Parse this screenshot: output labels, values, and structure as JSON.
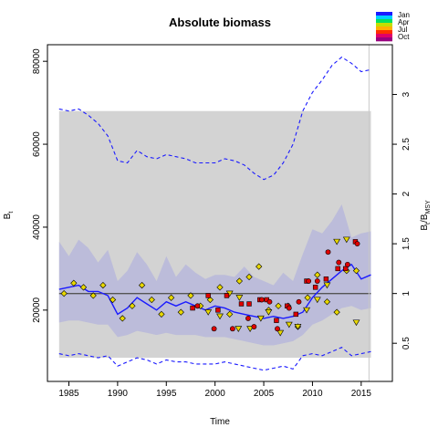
{
  "chart_data": {
    "type": "line",
    "title": "Absolute biomass",
    "xlabel": "Time",
    "ylabel": "B",
    "ylabel_sub": "t",
    "y2label": "B",
    "y2label_sub": "t",
    "y2label_mid": "/B",
    "y2label_sub2": "MSY",
    "xlim": [
      1982.8,
      2018.2
    ],
    "ylim": [
      2800,
      84000
    ],
    "x_ticks": [
      1985,
      1990,
      1995,
      2000,
      2005,
      2010,
      2015
    ],
    "y_ticks": [
      20000,
      40000,
      60000,
      80000
    ],
    "y2_ticks": [
      0.5,
      1,
      1.5,
      2,
      2.5,
      3
    ],
    "bmsy": 24000,
    "reference_line_value": 24000,
    "projection_start_year": 2015.8,
    "grey_band": {
      "x": [
        1984,
        2016
      ],
      "y": [
        8500,
        68000
      ]
    },
    "legend": {
      "labels": [
        "Jan",
        "Apr",
        "Jul",
        "Oct"
      ],
      "colors": [
        "#1a1aff",
        "#00d0ff",
        "#00e060",
        "#c0e000",
        "#ffb000",
        "#ff3000",
        "#e0006a",
        "#9a0080"
      ]
    },
    "series": [
      {
        "name": "B",
        "style": "solid",
        "color": "#1a1aff",
        "x": [
          1984,
          1985,
          1986,
          1987,
          1988,
          1989,
          1990,
          1991,
          1992,
          1993,
          1994,
          1995,
          1996,
          1997,
          1998,
          1999,
          2000,
          2001,
          2002,
          2003,
          2004,
          2005,
          2006,
          2007,
          2008,
          2009,
          2010,
          2011,
          2012,
          2013,
          2014,
          2015,
          2016
        ],
        "y": [
          25000,
          25500,
          26000,
          24500,
          24500,
          23500,
          19000,
          20500,
          23000,
          21500,
          20000,
          22000,
          21000,
          22000,
          21000,
          20000,
          21000,
          20500,
          19500,
          19000,
          18500,
          18000,
          18500,
          18000,
          18500,
          19500,
          23000,
          25500,
          27500,
          29500,
          31000,
          27500,
          28500
        ]
      },
      {
        "name": "upper-CI",
        "style": "dashed",
        "color": "#1a1aff",
        "x": [
          1984,
          1985,
          1986,
          1987,
          1988,
          1989,
          1990,
          1991,
          1992,
          1993,
          1994,
          1995,
          1996,
          1997,
          1998,
          1999,
          2000,
          2001,
          2002,
          2003,
          2004,
          2005,
          2006,
          2007,
          2008,
          2009,
          2010,
          2011,
          2012,
          2013,
          2014,
          2015,
          2016
        ],
        "y": [
          68500,
          68000,
          68500,
          67000,
          65000,
          62000,
          56000,
          55500,
          58500,
          57000,
          56500,
          57500,
          57000,
          56500,
          55500,
          55500,
          55500,
          56500,
          56000,
          55000,
          53000,
          51500,
          52500,
          55500,
          60000,
          68000,
          72500,
          75500,
          79000,
          81000,
          79500,
          77500,
          78000
        ]
      },
      {
        "name": "lower-CI",
        "style": "dashed",
        "color": "#1a1aff",
        "x": [
          1984,
          1985,
          1986,
          1987,
          1988,
          1989,
          1990,
          1991,
          1992,
          1993,
          1994,
          1995,
          1996,
          1997,
          1998,
          1999,
          2000,
          2001,
          2002,
          2003,
          2004,
          2005,
          2006,
          2007,
          2008,
          2009,
          2010,
          2011,
          2012,
          2013,
          2014,
          2015,
          2016
        ],
        "y": [
          9500,
          9000,
          9500,
          9000,
          8500,
          9000,
          6500,
          7500,
          8500,
          8000,
          7000,
          8000,
          7500,
          7500,
          7000,
          7000,
          7000,
          7500,
          7000,
          6500,
          6000,
          5500,
          6000,
          6500,
          5800,
          9000,
          9500,
          9000,
          10000,
          11000,
          9000,
          9500,
          10000
        ]
      },
      {
        "name": "band-upper",
        "style": "band",
        "color": "#b4b4dc",
        "x": [
          1984,
          1985,
          1986,
          1987,
          1988,
          1989,
          1990,
          1991,
          1992,
          1993,
          1994,
          1995,
          1996,
          1997,
          1998,
          1999,
          2000,
          2001,
          2002,
          2003,
          2004,
          2005,
          2006,
          2007,
          2008,
          2009,
          2010,
          2011,
          2012,
          2013,
          2014,
          2015,
          2016
        ],
        "y": [
          36500,
          33000,
          37000,
          35000,
          31500,
          34500,
          27000,
          29500,
          34000,
          31000,
          27000,
          33000,
          28000,
          31000,
          29000,
          27500,
          28500,
          28500,
          28000,
          30500,
          28000,
          27000,
          26000,
          29000,
          27000,
          33500,
          39500,
          38500,
          41500,
          45500,
          37500,
          38500,
          39000
        ]
      },
      {
        "name": "band-lower",
        "style": "band",
        "color": "#b4b4dc",
        "x": [
          1984,
          1985,
          1986,
          1987,
          1988,
          1989,
          1990,
          1991,
          1992,
          1993,
          1994,
          1995,
          1996,
          1997,
          1998,
          1999,
          2000,
          2001,
          2002,
          2003,
          2004,
          2005,
          2006,
          2007,
          2008,
          2009,
          2010,
          2011,
          2012,
          2013,
          2014,
          2015,
          2016
        ],
        "y": [
          17000,
          17500,
          17500,
          17000,
          16500,
          16500,
          13500,
          14000,
          15000,
          14500,
          14000,
          14500,
          14000,
          14000,
          14000,
          13500,
          13500,
          13500,
          13000,
          12500,
          12000,
          11500,
          11500,
          12000,
          12500,
          14000,
          16500,
          17500,
          19000,
          20500,
          21000,
          20000,
          20500
        ]
      }
    ],
    "observations": {
      "triangles": {
        "color": "#e8d800",
        "x": [
          1999.3,
          2000.5,
          2001.5,
          2002.4,
          2002.5,
          2003.6,
          2004.7,
          2005.5,
          2006.7,
          2007.6,
          2008.5,
          2009.4,
          2010.5,
          2011.5,
          2012.5,
          2013.5,
          2014.5
        ],
        "y": [
          19500,
          18500,
          24000,
          15500,
          23000,
          15500,
          18000,
          19500,
          14500,
          16500,
          16000,
          20000,
          22500,
          26000,
          36500,
          37000,
          17000
        ]
      },
      "diamonds": {
        "color": "#e8d800",
        "x": [
          1984.5,
          1985.5,
          1986.5,
          1987.5,
          1988.5,
          1989.5,
          1990.5,
          1991.5,
          1992.5,
          1993.5,
          1994.5,
          1995.5,
          1996.5,
          1997.5,
          1998.5,
          1999.5,
          2000.5,
          2001.5,
          2002.5,
          2003.5,
          2004.5,
          2005.5,
          2006.5,
          2007.5,
          2008.5,
          2009.5,
          2010.5,
          2011.5,
          2012.5,
          2013.5,
          2014.5
        ],
        "y": [
          24000,
          26500,
          25500,
          23500,
          26000,
          22500,
          18000,
          21000,
          26000,
          22500,
          19000,
          23000,
          19500,
          23500,
          21000,
          22500,
          25500,
          19000,
          27000,
          28000,
          30500,
          20000,
          21000,
          21000,
          16000,
          23000,
          28500,
          22000,
          19500,
          29500,
          29500
        ]
      },
      "circles": {
        "color": "#e00000",
        "x": [
          1998.2,
          1999.9,
          2001.8,
          2003.4,
          2004.0,
          2004.8,
          2005.6,
          2006.4,
          2007.6,
          2008.6,
          2009.6,
          2010.5,
          2011.6,
          2012.7,
          2013.6,
          2014.6
        ],
        "y": [
          21000,
          15500,
          15500,
          18000,
          16000,
          22500,
          22000,
          15500,
          20500,
          22000,
          27000,
          27000,
          34000,
          31500,
          31000,
          36000
        ]
      },
      "squares": {
        "color": "#e00000",
        "x": [
          1997.7,
          1999.3,
          2000.3,
          2001.2,
          2002.7,
          2003.5,
          2004.6,
          2005.3,
          2006.3,
          2007.4,
          2008.3,
          2009.4,
          2010.3,
          2011.4,
          2012.6,
          2013.4,
          2014.4
        ],
        "y": [
          20500,
          23500,
          20000,
          23500,
          21500,
          21500,
          22500,
          22500,
          17500,
          21000,
          19000,
          27000,
          25500,
          27500,
          30000,
          30000,
          36500
        ]
      }
    }
  }
}
